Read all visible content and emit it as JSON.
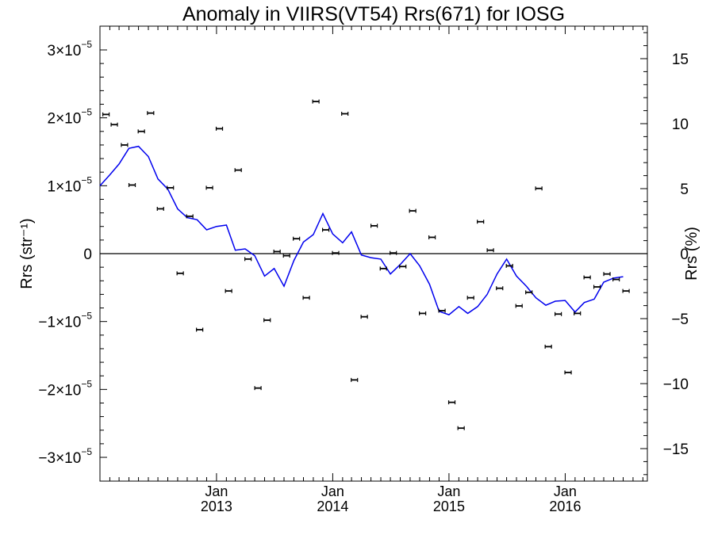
{
  "chart_data": {
    "type": "scatter",
    "title": "Anomaly in VIIRS(VT54) Rrs(671) for IOSG",
    "ylabel": "Rrs (str⁻¹)",
    "y2label": "Rrs (%)",
    "ylim": [
      -3.35e-05,
      3.35e-05
    ],
    "y2lim": [
      -17.5,
      17.5
    ],
    "xlim": [
      "2012-01-01",
      "2016-09-15"
    ],
    "yticks": [
      {
        "value": 3e-05,
        "label": "3×10",
        "exp": "−5"
      },
      {
        "value": 2e-05,
        "label": "2×10",
        "exp": "−5"
      },
      {
        "value": 1e-05,
        "label": "1×10",
        "exp": "−5"
      },
      {
        "value": 0,
        "label": "0",
        "exp": ""
      },
      {
        "value": -1e-05,
        "label": "−1×10",
        "exp": "−5"
      },
      {
        "value": -2e-05,
        "label": "−2×10",
        "exp": "−5"
      },
      {
        "value": -3e-05,
        "label": "−3×10",
        "exp": "−5"
      }
    ],
    "y2ticks": [
      {
        "value": 15,
        "label": "15"
      },
      {
        "value": 10,
        "label": "10"
      },
      {
        "value": 5,
        "label": "5"
      },
      {
        "value": 0,
        "label": "0"
      },
      {
        "value": -5,
        "label": "−5"
      },
      {
        "value": -10,
        "label": "−10"
      },
      {
        "value": -15,
        "label": "−15"
      }
    ],
    "xticks": [
      {
        "date": "2013-01-01",
        "label1": "Jan",
        "label2": "2013"
      },
      {
        "date": "2014-01-01",
        "label1": "Jan",
        "label2": "2014"
      },
      {
        "date": "2015-01-01",
        "label1": "Jan",
        "label2": "2015"
      },
      {
        "date": "2016-01-01",
        "label1": "Jan",
        "label2": "2016"
      }
    ],
    "points": [
      {
        "date": "2012-01-20",
        "y": 2.05e-05
      },
      {
        "date": "2012-02-15",
        "y": 1.9e-05
      },
      {
        "date": "2012-03-18",
        "y": 1.6e-05
      },
      {
        "date": "2012-04-11",
        "y": 1.01e-05
      },
      {
        "date": "2012-05-10",
        "y": 1.8e-05
      },
      {
        "date": "2012-06-08",
        "y": 2.07e-05
      },
      {
        "date": "2012-07-09",
        "y": 6.6e-06
      },
      {
        "date": "2012-08-09",
        "y": 9.7e-06
      },
      {
        "date": "2012-09-09",
        "y": -2.9e-06
      },
      {
        "date": "2012-10-09",
        "y": 5.5e-06
      },
      {
        "date": "2012-11-09",
        "y": -1.12e-05
      },
      {
        "date": "2012-12-10",
        "y": 9.7e-06
      },
      {
        "date": "2013-01-10",
        "y": 1.84e-05
      },
      {
        "date": "2013-02-08",
        "y": -5.5e-06
      },
      {
        "date": "2013-03-10",
        "y": 1.23e-05
      },
      {
        "date": "2013-04-10",
        "y": -8e-07
      },
      {
        "date": "2013-05-11",
        "y": -1.98e-05
      },
      {
        "date": "2013-06-09",
        "y": -9.8e-06
      },
      {
        "date": "2013-07-10",
        "y": 3e-07
      },
      {
        "date": "2013-08-09",
        "y": -3e-07
      },
      {
        "date": "2013-09-09",
        "y": 2.2e-06
      },
      {
        "date": "2013-10-10",
        "y": -6.5e-06
      },
      {
        "date": "2013-11-09",
        "y": 2.24e-05
      },
      {
        "date": "2013-12-10",
        "y": 3.5e-06
      },
      {
        "date": "2014-01-10",
        "y": 1e-07
      },
      {
        "date": "2014-02-08",
        "y": 2.06e-05
      },
      {
        "date": "2014-03-10",
        "y": -1.86e-05
      },
      {
        "date": "2014-04-10",
        "y": -9.3e-06
      },
      {
        "date": "2014-05-11",
        "y": 4.1e-06
      },
      {
        "date": "2014-06-09",
        "y": -2.2e-06
      },
      {
        "date": "2014-07-10",
        "y": 1e-07
      },
      {
        "date": "2014-08-09",
        "y": -1.9e-06
      },
      {
        "date": "2014-09-09",
        "y": 6.3e-06
      },
      {
        "date": "2014-10-10",
        "y": -8.8e-06
      },
      {
        "date": "2014-11-09",
        "y": 2.4e-06
      },
      {
        "date": "2014-12-10",
        "y": -8.4e-06
      },
      {
        "date": "2015-01-10",
        "y": -2.19e-05
      },
      {
        "date": "2015-02-08",
        "y": -2.57e-05
      },
      {
        "date": "2015-03-10",
        "y": -6.5e-06
      },
      {
        "date": "2015-04-10",
        "y": 4.7e-06
      },
      {
        "date": "2015-05-11",
        "y": 5e-07
      },
      {
        "date": "2015-06-09",
        "y": -5.1e-06
      },
      {
        "date": "2015-07-10",
        "y": -1.8e-06
      },
      {
        "date": "2015-08-09",
        "y": -7.7e-06
      },
      {
        "date": "2015-09-09",
        "y": -5.7e-06
      },
      {
        "date": "2015-10-10",
        "y": 9.6e-06
      },
      {
        "date": "2015-11-09",
        "y": -1.37e-05
      },
      {
        "date": "2015-12-10",
        "y": -8.9e-06
      },
      {
        "date": "2016-01-10",
        "y": -1.75e-05
      },
      {
        "date": "2016-02-08",
        "y": -8.8e-06
      },
      {
        "date": "2016-03-10",
        "y": -3.5e-06
      },
      {
        "date": "2016-04-10",
        "y": -4.9e-06
      },
      {
        "date": "2016-05-11",
        "y": -3e-06
      },
      {
        "date": "2016-06-09",
        "y": -3.8e-06
      },
      {
        "date": "2016-07-10",
        "y": -5.5e-06
      }
    ],
    "trend": [
      {
        "date": "2012-01-01",
        "y": 1e-05
      },
      {
        "date": "2012-02-01",
        "y": 1.16e-05
      },
      {
        "date": "2012-03-01",
        "y": 1.32e-05
      },
      {
        "date": "2012-04-01",
        "y": 1.55e-05
      },
      {
        "date": "2012-05-01",
        "y": 1.58e-05
      },
      {
        "date": "2012-06-01",
        "y": 1.43e-05
      },
      {
        "date": "2012-07-01",
        "y": 1.1e-05
      },
      {
        "date": "2012-08-01",
        "y": 9.5e-06
      },
      {
        "date": "2012-09-01",
        "y": 6.6e-06
      },
      {
        "date": "2012-10-01",
        "y": 5.3e-06
      },
      {
        "date": "2012-11-01",
        "y": 5e-06
      },
      {
        "date": "2012-12-01",
        "y": 3.5e-06
      },
      {
        "date": "2013-01-01",
        "y": 4e-06
      },
      {
        "date": "2013-02-01",
        "y": 4.2e-06
      },
      {
        "date": "2013-03-01",
        "y": 5e-07
      },
      {
        "date": "2013-04-01",
        "y": 7e-07
      },
      {
        "date": "2013-05-01",
        "y": -3e-07
      },
      {
        "date": "2013-06-01",
        "y": -3.3e-06
      },
      {
        "date": "2013-07-01",
        "y": -2.2e-06
      },
      {
        "date": "2013-08-01",
        "y": -4.8e-06
      },
      {
        "date": "2013-09-01",
        "y": -1e-06
      },
      {
        "date": "2013-10-01",
        "y": 1.7e-06
      },
      {
        "date": "2013-11-01",
        "y": 2.8e-06
      },
      {
        "date": "2013-12-01",
        "y": 5.9e-06
      },
      {
        "date": "2014-01-01",
        "y": 2.9e-06
      },
      {
        "date": "2014-02-01",
        "y": 1.6e-06
      },
      {
        "date": "2014-03-01",
        "y": 3.2e-06
      },
      {
        "date": "2014-04-01",
        "y": -2e-07
      },
      {
        "date": "2014-05-01",
        "y": -6e-07
      },
      {
        "date": "2014-06-01",
        "y": -8e-07
      },
      {
        "date": "2014-07-01",
        "y": -3e-06
      },
      {
        "date": "2014-08-01",
        "y": -1.6e-06
      },
      {
        "date": "2014-09-01",
        "y": 0.0
      },
      {
        "date": "2014-10-01",
        "y": -1.8e-06
      },
      {
        "date": "2014-11-01",
        "y": -4.5e-06
      },
      {
        "date": "2014-12-01",
        "y": -8.5e-06
      },
      {
        "date": "2015-01-01",
        "y": -9e-06
      },
      {
        "date": "2015-02-01",
        "y": -7.8e-06
      },
      {
        "date": "2015-03-01",
        "y": -8.8e-06
      },
      {
        "date": "2015-04-01",
        "y": -7.8e-06
      },
      {
        "date": "2015-05-01",
        "y": -6e-06
      },
      {
        "date": "2015-06-01",
        "y": -3e-06
      },
      {
        "date": "2015-07-01",
        "y": -8e-07
      },
      {
        "date": "2015-08-01",
        "y": -3.3e-06
      },
      {
        "date": "2015-09-01",
        "y": -4.8e-06
      },
      {
        "date": "2015-10-01",
        "y": -6.5e-06
      },
      {
        "date": "2015-11-01",
        "y": -7.6e-06
      },
      {
        "date": "2015-12-01",
        "y": -7e-06
      },
      {
        "date": "2016-01-01",
        "y": -6.9e-06
      },
      {
        "date": "2016-02-01",
        "y": -8.6e-06
      },
      {
        "date": "2016-03-01",
        "y": -7.2e-06
      },
      {
        "date": "2016-04-01",
        "y": -6.7e-06
      },
      {
        "date": "2016-05-01",
        "y": -4.2e-06
      },
      {
        "date": "2016-06-01",
        "y": -3.6e-06
      },
      {
        "date": "2016-07-01",
        "y": -3.4e-06
      }
    ],
    "colors": {
      "trend": "#0000ee",
      "points": "#000000",
      "zero_line": "#000000"
    },
    "grid": false,
    "legend": "none"
  }
}
